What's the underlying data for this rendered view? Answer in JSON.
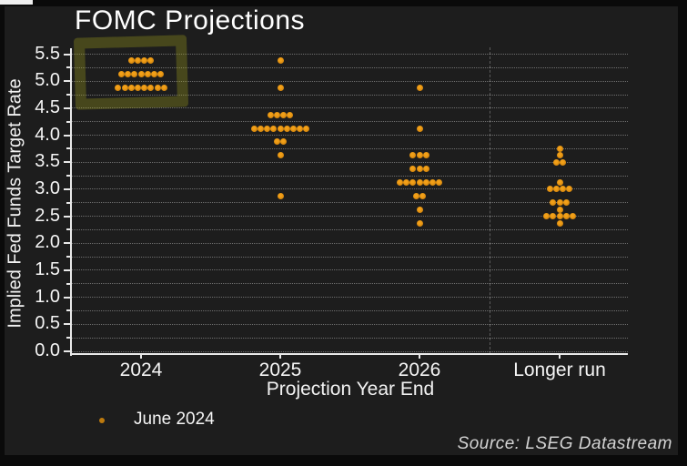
{
  "title": "FOMC Projections",
  "y_axis": {
    "label": "Implied Fed Funds Target Rate",
    "tick_labels": [
      "5.5",
      "5.0",
      "4.5",
      "4.0",
      "3.5",
      "3.0",
      "2.5",
      "2.0",
      "1.5",
      "1.0",
      "0.5",
      "0.0"
    ],
    "min": 0.0,
    "max": 5.5,
    "major_tick_step": 0.5,
    "grid_step": 0.25
  },
  "x_axis": {
    "label": "Projection Year End",
    "categories": [
      "2024",
      "2025",
      "2026",
      "Longer run"
    ]
  },
  "legend": {
    "series_label": "June 2024",
    "marker_color": "#bd7a0e",
    "position": "bottom-left"
  },
  "source": "Source: LSEG Datastream",
  "annotation": {
    "type": "hand-drawn-highlight-box",
    "target": "2024 dot cluster",
    "color": "#8a8a1c"
  },
  "colors": {
    "background": "#1d1d1d",
    "frame": "#0a0a0a",
    "dot": "#e0910f",
    "grid": "#6f6f6f",
    "axis": "#e9e9e9",
    "text": "#f5f5f5",
    "source_text": "#d4d4d4"
  },
  "chart_data": {
    "type": "scatter",
    "subtype": "fomc-dot-plot",
    "title": "FOMC Projections",
    "xlabel": "Projection Year End",
    "ylabel": "Implied Fed Funds Target Rate",
    "ylim": [
      0,
      5.5
    ],
    "grid": "dotted, every 0.25",
    "legend_position": "bottom-left",
    "categories": [
      "2024",
      "2025",
      "2026",
      "Longer run"
    ],
    "series": [
      {
        "name": "June 2024",
        "distributions": [
          {
            "category": "2024",
            "dots": [
              {
                "rate": 4.875,
                "count": 8
              },
              {
                "rate": 5.125,
                "count": 7
              },
              {
                "rate": 5.375,
                "count": 4
              }
            ]
          },
          {
            "category": "2025",
            "dots": [
              {
                "rate": 2.875,
                "count": 1
              },
              {
                "rate": 3.625,
                "count": 1
              },
              {
                "rate": 3.875,
                "count": 2
              },
              {
                "rate": 4.125,
                "count": 9
              },
              {
                "rate": 4.375,
                "count": 4
              },
              {
                "rate": 4.875,
                "count": 1
              },
              {
                "rate": 5.375,
                "count": 1
              }
            ]
          },
          {
            "category": "2026",
            "dots": [
              {
                "rate": 2.375,
                "count": 1
              },
              {
                "rate": 2.625,
                "count": 1
              },
              {
                "rate": 2.875,
                "count": 2
              },
              {
                "rate": 3.125,
                "count": 7
              },
              {
                "rate": 3.375,
                "count": 3
              },
              {
                "rate": 3.625,
                "count": 3
              },
              {
                "rate": 4.125,
                "count": 1
              },
              {
                "rate": 4.875,
                "count": 1
              }
            ]
          },
          {
            "category": "Longer run",
            "dots": [
              {
                "rate": 2.375,
                "count": 1
              },
              {
                "rate": 2.5,
                "count": 5
              },
              {
                "rate": 2.625,
                "count": 1
              },
              {
                "rate": 2.75,
                "count": 3
              },
              {
                "rate": 3.0,
                "count": 4
              },
              {
                "rate": 3.125,
                "count": 1
              },
              {
                "rate": 3.5,
                "count": 2
              },
              {
                "rate": 3.625,
                "count": 1
              },
              {
                "rate": 3.75,
                "count": 1
              }
            ]
          }
        ]
      }
    ]
  }
}
